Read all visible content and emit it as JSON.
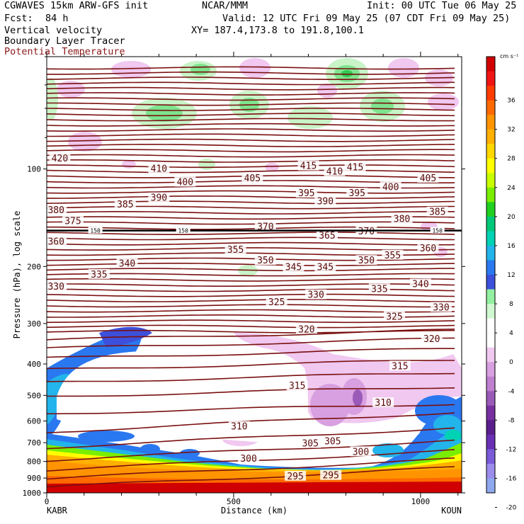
{
  "header": {
    "model": "CGWAVES 15km ARW-GFS init",
    "org": "NCAR/MMM",
    "init": "Init: 00 UTC Tue 06 May 25",
    "fcst_label": "Fcst:",
    "fcst_value": "84 h",
    "valid": "Valid: 12 UTC Fri 09 May 25 (07 CDT Fri 09 May 25)",
    "xy": "XY= 187.4,173.8 to 191.8,100.1",
    "field1": "Vertical velocity",
    "field2": "Boundary Layer Tracer",
    "field3": "Potential Temperature"
  },
  "chart_data": {
    "type": "heatmap",
    "xlabel": "Distance (km)",
    "ylabel": "Pressure (hPa), log scale",
    "x_range": [
      0,
      1110
    ],
    "x_ticks": [
      0,
      500,
      1000
    ],
    "y_range": [
      1000,
      45
    ],
    "y_ticks": [
      100,
      200,
      300,
      400,
      500,
      600,
      700,
      800,
      900,
      1000
    ],
    "y_scale": "log",
    "left_station": "KABR",
    "right_station": "KOUN",
    "colorbar": {
      "unit": "cm s⁻¹",
      "labels": [
        36,
        32,
        28,
        24,
        20,
        16,
        12,
        8,
        4,
        0,
        -4,
        -8,
        -12,
        -16,
        -20
      ],
      "colors": [
        "#d00000",
        "#f01414",
        "#ff3c00",
        "#ff6a00",
        "#ff9400",
        "#ffb000",
        "#ffd800",
        "#ffff00",
        "#c8ff00",
        "#7aee00",
        "#20d020",
        "#00c878",
        "#00d2b4",
        "#22b4ea",
        "#2a78f0",
        "#3c50dc",
        "#92f0a0",
        "#d0f8d0",
        "#ffffff",
        "#ffffff",
        "#f0c8f0",
        "#d8a0e0",
        "#c080d0",
        "#9a5ab8",
        "#7830a0",
        "#5a1e8c",
        "#6a30b4",
        "#7a5ad8",
        "#9c8cec",
        "#8ea8ee"
      ]
    },
    "isentrope_labels": [
      {
        "label": "420",
        "x": 35,
        "p": 93
      },
      {
        "label": "410",
        "x": 300,
        "p": 100
      },
      {
        "label": "400",
        "x": 370,
        "p": 110
      },
      {
        "label": "405",
        "x": 550,
        "p": 107
      },
      {
        "label": "415",
        "x": 700,
        "p": 98
      },
      {
        "label": "410",
        "x": 770,
        "p": 102
      },
      {
        "label": "415",
        "x": 825,
        "p": 99
      },
      {
        "label": "405",
        "x": 1020,
        "p": 107
      },
      {
        "label": "400",
        "x": 920,
        "p": 114
      },
      {
        "label": "395",
        "x": 695,
        "p": 119
      },
      {
        "label": "390",
        "x": 745,
        "p": 126
      },
      {
        "label": "395",
        "x": 830,
        "p": 119
      },
      {
        "label": "380",
        "x": 25,
        "p": 134
      },
      {
        "label": "385",
        "x": 210,
        "p": 129
      },
      {
        "label": "390",
        "x": 300,
        "p": 123
      },
      {
        "label": "375",
        "x": 70,
        "p": 145
      },
      {
        "label": "380",
        "x": 950,
        "p": 143
      },
      {
        "label": "385",
        "x": 1045,
        "p": 136
      },
      {
        "label": "370",
        "x": 585,
        "p": 151
      },
      {
        "label": "365",
        "x": 750,
        "p": 161
      },
      {
        "label": "370",
        "x": 855,
        "p": 156
      },
      {
        "label": "360",
        "x": 25,
        "p": 168
      },
      {
        "label": "355",
        "x": 505,
        "p": 178
      },
      {
        "label": "360",
        "x": 1020,
        "p": 176
      },
      {
        "label": "355",
        "x": 925,
        "p": 185
      },
      {
        "label": "350",
        "x": 585,
        "p": 192
      },
      {
        "label": "345",
        "x": 660,
        "p": 201
      },
      {
        "label": "345",
        "x": 745,
        "p": 201
      },
      {
        "label": "350",
        "x": 855,
        "p": 192
      },
      {
        "label": "340",
        "x": 215,
        "p": 196
      },
      {
        "label": "335",
        "x": 140,
        "p": 212
      },
      {
        "label": "330",
        "x": 25,
        "p": 231
      },
      {
        "label": "340",
        "x": 1000,
        "p": 227
      },
      {
        "label": "335",
        "x": 890,
        "p": 235
      },
      {
        "label": "330",
        "x": 720,
        "p": 245
      },
      {
        "label": "325",
        "x": 615,
        "p": 258
      },
      {
        "label": "330",
        "x": 1055,
        "p": 268
      },
      {
        "label": "325",
        "x": 930,
        "p": 286
      },
      {
        "label": "320",
        "x": 695,
        "p": 313
      },
      {
        "label": "320",
        "x": 1030,
        "p": 335
      },
      {
        "label": "315",
        "x": 945,
        "p": 407
      },
      {
        "label": "315",
        "x": 670,
        "p": 468
      },
      {
        "label": "310",
        "x": 900,
        "p": 528
      },
      {
        "label": "310",
        "x": 515,
        "p": 625
      },
      {
        "label": "305",
        "x": 705,
        "p": 705
      },
      {
        "label": "305",
        "x": 765,
        "p": 695
      },
      {
        "label": "300",
        "x": 840,
        "p": 748
      },
      {
        "label": "300",
        "x": 540,
        "p": 785
      },
      {
        "label": "295",
        "x": 665,
        "p": 890
      },
      {
        "label": "295",
        "x": 760,
        "p": 885
      }
    ],
    "bl_tracer_labels": [
      {
        "label": "150",
        "x": 130,
        "p": 155
      },
      {
        "label": "150",
        "x": 365,
        "p": 155
      },
      {
        "label": "150",
        "x": 1045,
        "p": 155
      }
    ]
  }
}
